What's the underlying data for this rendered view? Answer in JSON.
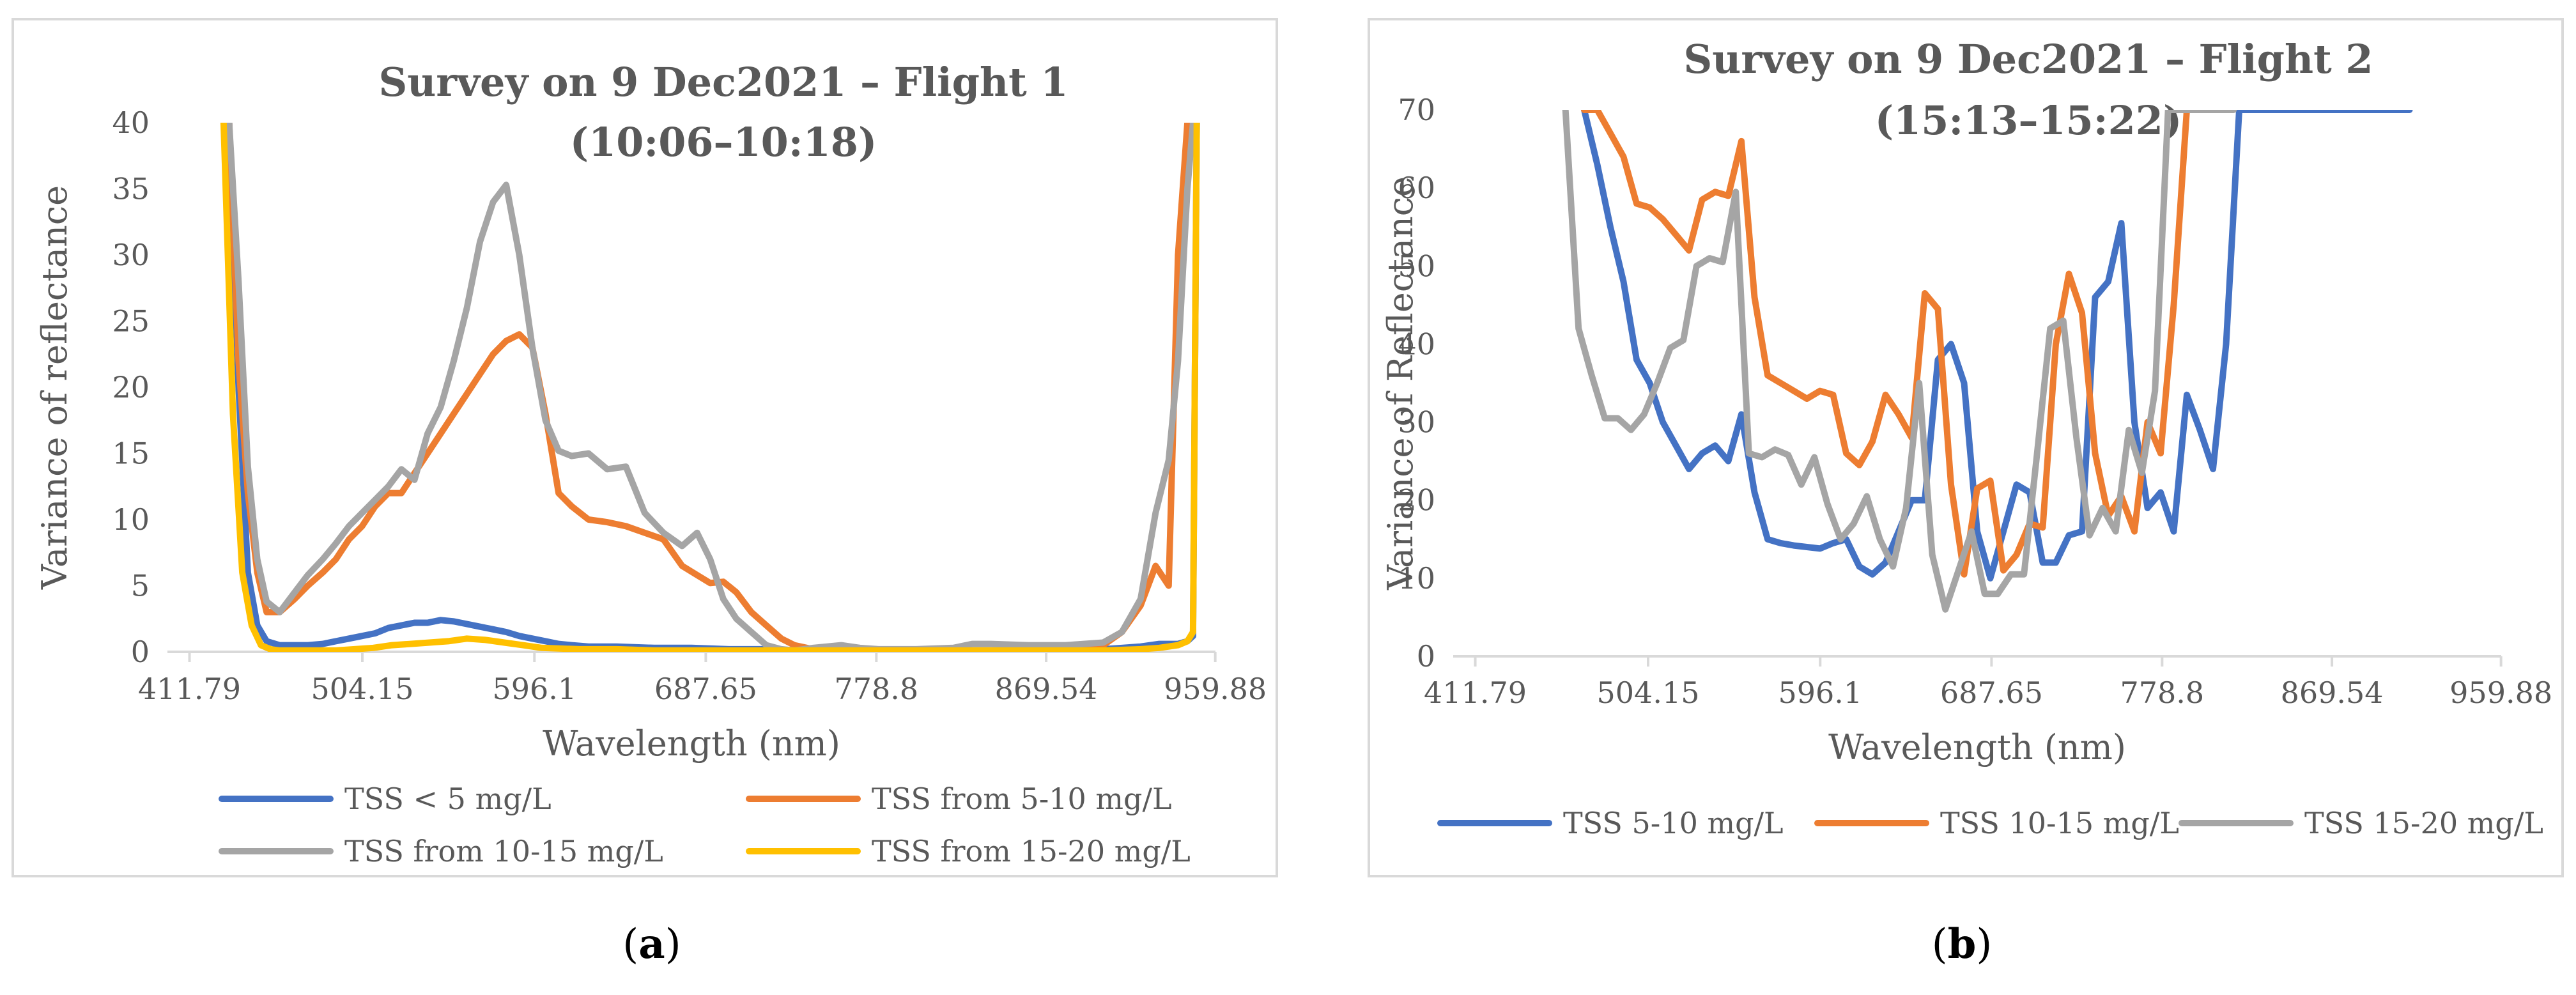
{
  "figure": {
    "captions": {
      "a_open": "(",
      "a_letter": "a",
      "a_close": ")",
      "b_open": "(",
      "b_letter": "b",
      "b_close": ")"
    }
  },
  "chart_data": [
    {
      "id": "a",
      "type": "line",
      "title": "Survey on 9 Dec2021 – Flight 1",
      "subtitle": "(10:06–10:18)",
      "xlabel": "Wavelength (nm)",
      "ylabel": "Variance of reflectance",
      "xlim": [
        400,
        960
      ],
      "ylim": [
        0,
        40
      ],
      "yticks": [
        0,
        5,
        10,
        15,
        20,
        25,
        30,
        35,
        40
      ],
      "xticks": [
        "411.79",
        "504.15",
        "596.1",
        "687.65",
        "778.8",
        "869.54",
        "959.88"
      ],
      "xtick_values": [
        411.79,
        504.15,
        596.1,
        687.65,
        778.8,
        869.54,
        959.88
      ],
      "legend_position": "bottom",
      "series": [
        {
          "name": "TSS < 5 mg/L",
          "color": "#4472c4",
          "x": [
            433,
            438,
            443,
            448,
            453,
            460,
            468,
            475,
            483,
            490,
            497,
            504,
            511,
            518,
            525,
            532,
            539,
            546,
            553,
            560,
            567,
            574,
            581,
            588,
            595,
            602,
            609,
            616,
            625,
            640,
            660,
            680,
            700,
            720,
            740,
            760,
            780,
            800,
            820,
            840,
            860,
            880,
            900,
            910,
            920,
            930,
            940,
            945,
            948,
            950
          ],
          "y": [
            40,
            20,
            6,
            2,
            0.8,
            0.5,
            0.5,
            0.5,
            0.6,
            0.8,
            1,
            1.2,
            1.4,
            1.8,
            2,
            2.2,
            2.2,
            2.4,
            2.3,
            2.1,
            1.9,
            1.7,
            1.5,
            1.2,
            1,
            0.8,
            0.6,
            0.5,
            0.4,
            0.4,
            0.3,
            0.3,
            0.2,
            0.2,
            0.1,
            0.1,
            0.1,
            0.1,
            0.1,
            0.1,
            0.1,
            0.1,
            0.2,
            0.3,
            0.4,
            0.6,
            0.6,
            0.8,
            1.2,
            40
          ]
        },
        {
          "name": "TSS from 5-10 mg/L",
          "color": "#ed7d31",
          "x": [
            433,
            438,
            443,
            448,
            453,
            460,
            468,
            475,
            483,
            490,
            497,
            504,
            511,
            518,
            525,
            532,
            539,
            546,
            553,
            560,
            567,
            574,
            581,
            588,
            595,
            602,
            609,
            616,
            625,
            635,
            645,
            655,
            665,
            675,
            683,
            690,
            697,
            704,
            712,
            720,
            728,
            735,
            745,
            760,
            780,
            800,
            820,
            840,
            860,
            880,
            900,
            910,
            920,
            928,
            935,
            940,
            945,
            948,
            950
          ],
          "y": [
            40,
            22,
            12,
            6,
            3,
            3,
            4,
            5,
            6,
            7,
            8.5,
            9.5,
            11,
            12,
            12,
            13.5,
            15,
            16.5,
            18,
            19.5,
            21,
            22.5,
            23.5,
            24,
            23,
            18,
            12,
            11,
            10,
            9.8,
            9.5,
            9,
            8.5,
            6.5,
            5.8,
            5.2,
            5.3,
            4.5,
            3,
            2,
            1,
            0.5,
            0.2,
            0.1,
            0.1,
            0.1,
            0.1,
            0.1,
            0.1,
            0.2,
            0.5,
            1.5,
            3.5,
            6.5,
            5,
            30,
            40,
            40,
            40
          ]
        },
        {
          "name": "TSS from 10-15 mg/L",
          "color": "#a5a5a5",
          "x": [
            433,
            438,
            443,
            448,
            453,
            460,
            468,
            475,
            483,
            490,
            497,
            504,
            511,
            518,
            525,
            532,
            539,
            546,
            553,
            560,
            567,
            574,
            581,
            588,
            595,
            602,
            609,
            616,
            625,
            635,
            645,
            655,
            665,
            675,
            683,
            690,
            697,
            704,
            712,
            720,
            728,
            735,
            745,
            760,
            770,
            780,
            800,
            820,
            830,
            840,
            860,
            880,
            900,
            910,
            920,
            928,
            935,
            940,
            945,
            948
          ],
          "y": [
            40,
            28,
            14,
            7,
            3.8,
            3,
            4.5,
            5.8,
            7,
            8.2,
            9.5,
            10.5,
            11.5,
            12.5,
            13.8,
            13,
            16.5,
            18.5,
            22,
            26,
            31,
            34,
            35.3,
            30,
            23,
            17.5,
            15.2,
            14.8,
            15,
            13.8,
            14,
            10.5,
            9,
            8,
            9,
            7,
            4,
            2.5,
            1.5,
            0.5,
            0.2,
            0.1,
            0.3,
            0.5,
            0.3,
            0.2,
            0.2,
            0.3,
            0.6,
            0.6,
            0.5,
            0.5,
            0.7,
            1.5,
            4,
            10.5,
            14.5,
            22,
            35,
            40
          ]
        },
        {
          "name": "TSS from 15-20 mg/L",
          "color": "#ffc000",
          "x": [
            430,
            435,
            440,
            445,
            450,
            455,
            460,
            470,
            480,
            490,
            500,
            510,
            520,
            530,
            540,
            550,
            560,
            570,
            580,
            590,
            600,
            620,
            640,
            660,
            680,
            700,
            720,
            740,
            760,
            780,
            800,
            820,
            840,
            860,
            880,
            900,
            920,
            930,
            940,
            945,
            948,
            950
          ],
          "y": [
            40,
            18,
            6,
            2,
            0.5,
            0.2,
            0.1,
            0.1,
            0.1,
            0.1,
            0.2,
            0.3,
            0.5,
            0.6,
            0.7,
            0.8,
            1,
            0.9,
            0.7,
            0.5,
            0.3,
            0.2,
            0.2,
            0.1,
            0.1,
            0.1,
            0.1,
            0.1,
            0.1,
            0.1,
            0.1,
            0.1,
            0.1,
            0.1,
            0.1,
            0.1,
            0.2,
            0.3,
            0.5,
            0.8,
            1.5,
            40
          ]
        }
      ]
    },
    {
      "id": "b",
      "type": "line",
      "title": "Survey on 9 Dec2021 – Flight 2",
      "subtitle": "(15:13–15:22)",
      "xlabel": "Wavelength (nm)",
      "ylabel": "Variance of Reflectance",
      "xlim": [
        400,
        960
      ],
      "ylim": [
        0,
        70
      ],
      "yticks": [
        0,
        10,
        20,
        30,
        40,
        50,
        60,
        70
      ],
      "xticks": [
        "411.79",
        "504.15",
        "596.1",
        "687.65",
        "778.8",
        "869.54",
        "959.88"
      ],
      "xtick_values": [
        411.79,
        504.15,
        596.1,
        687.65,
        778.8,
        869.54,
        959.88
      ],
      "legend_position": "bottom",
      "series": [
        {
          "name": "TSS 5-10 mg/L",
          "color": "#4472c4",
          "x": [
            470,
            477,
            484,
            491,
            498,
            505,
            512,
            519,
            526,
            533,
            540,
            547,
            554,
            561,
            568,
            575,
            582,
            589,
            596,
            603,
            610,
            617,
            624,
            631,
            638,
            645,
            652,
            659,
            666,
            673,
            680,
            687,
            694,
            701,
            708,
            715,
            722,
            729,
            736,
            743,
            750,
            757,
            764,
            771,
            778,
            785,
            792,
            799,
            806,
            813,
            820,
            827,
            834,
            841,
            848,
            855,
            862,
            869,
            876,
            883,
            890,
            897,
            904,
            911
          ],
          "y": [
            70,
            63,
            55,
            48,
            38,
            35,
            30,
            27,
            24,
            26,
            27,
            25,
            31,
            21,
            15,
            14.5,
            14.2,
            14,
            13.8,
            14.5,
            15,
            11.5,
            10.5,
            12,
            16,
            20,
            20,
            38,
            40,
            35,
            16,
            10,
            16,
            22,
            21,
            12,
            12,
            15.5,
            16,
            46,
            48,
            55.5,
            30,
            19,
            21,
            16,
            33.5,
            29,
            24,
            40,
            70,
            70,
            70,
            70,
            70,
            70,
            70,
            70,
            70,
            70,
            70,
            70,
            70,
            70
          ]
        },
        {
          "name": "TSS 10-15 mg/L",
          "color": "#ed7d31",
          "x": [
            470,
            477,
            484,
            491,
            498,
            505,
            512,
            519,
            526,
            533,
            540,
            547,
            554,
            561,
            568,
            575,
            582,
            589,
            596,
            603,
            610,
            617,
            624,
            631,
            638,
            645,
            652,
            659,
            666,
            673,
            680,
            687,
            694,
            701,
            708,
            715,
            722,
            729,
            736,
            743,
            750,
            757,
            764,
            771,
            778,
            785,
            792,
            799,
            806,
            813
          ],
          "y": [
            70,
            70,
            67,
            64,
            58,
            57.5,
            56,
            54,
            52,
            58.5,
            59.5,
            59,
            66,
            46,
            36,
            35,
            34,
            33,
            34,
            33.5,
            26,
            24.5,
            27.5,
            33.5,
            31,
            28,
            46.5,
            44.5,
            22,
            10.5,
            21.5,
            22.5,
            11,
            13,
            17,
            16.5,
            40,
            49,
            44,
            26,
            18,
            20.5,
            16,
            30,
            26,
            45,
            70,
            70,
            70,
            70
          ]
        },
        {
          "name": "TSS 15-20 mg/L",
          "color": "#a5a5a5",
          "x": [
            460,
            467,
            474,
            481,
            488,
            495,
            502,
            509,
            516,
            523,
            530,
            537,
            544,
            551,
            558,
            565,
            572,
            579,
            586,
            593,
            600,
            607,
            614,
            621,
            628,
            635,
            642,
            649,
            656,
            663,
            670,
            677,
            684,
            691,
            698,
            705,
            712,
            719,
            726,
            733,
            740,
            747,
            754,
            761,
            768,
            775,
            782,
            789,
            796,
            803,
            810,
            817
          ],
          "y": [
            70,
            42,
            36,
            30.5,
            30.5,
            29,
            31,
            35,
            39.5,
            40.5,
            50,
            51,
            50.5,
            59.5,
            26,
            25.5,
            26.5,
            25.8,
            22,
            25.5,
            19.5,
            15,
            17,
            20.5,
            15,
            11.5,
            19,
            35,
            13,
            6,
            11,
            16,
            8,
            8,
            10.5,
            10.5,
            26,
            42,
            43,
            28,
            15.5,
            19,
            16,
            29,
            23.5,
            34,
            70,
            70,
            70,
            70,
            70,
            70
          ]
        }
      ]
    }
  ]
}
